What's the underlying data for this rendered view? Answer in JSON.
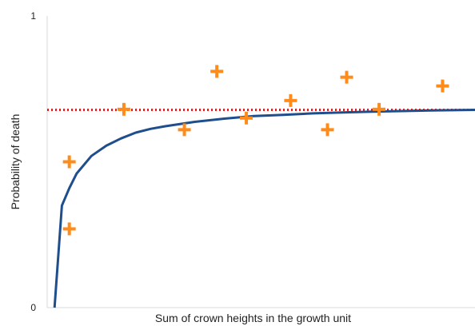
{
  "chart_data": {
    "type": "scatter",
    "title": "",
    "xlabel": "Sum of crown heights in the growth unit",
    "ylabel": "Probability of death",
    "xlim": [
      0,
      29
    ],
    "ylim": [
      0,
      1
    ],
    "yticks": [
      {
        "value": 0,
        "label": "0"
      },
      {
        "value": 1,
        "label": "1"
      }
    ],
    "grid": false,
    "legend": "none",
    "series": [
      {
        "type": "scatter",
        "marker": "plus",
        "color": "#ff8c1a",
        "points": [
          {
            "x": 1.5,
            "y": 0.5
          },
          {
            "x": 1.5,
            "y": 0.27
          },
          {
            "x": 5.2,
            "y": 0.68
          },
          {
            "x": 9.3,
            "y": 0.61
          },
          {
            "x": 11.5,
            "y": 0.81
          },
          {
            "x": 13.5,
            "y": 0.65
          },
          {
            "x": 16.5,
            "y": 0.71
          },
          {
            "x": 19.0,
            "y": 0.61
          },
          {
            "x": 20.3,
            "y": 0.79
          },
          {
            "x": 22.5,
            "y": 0.68
          },
          {
            "x": 26.8,
            "y": 0.76
          }
        ]
      },
      {
        "type": "line",
        "color": "#1f4e8c",
        "points": [
          {
            "x": 0.5,
            "y": 0.0
          },
          {
            "x": 1.0,
            "y": 0.35
          },
          {
            "x": 1.5,
            "y": 0.41
          },
          {
            "x": 2.0,
            "y": 0.46
          },
          {
            "x": 3.0,
            "y": 0.52
          },
          {
            "x": 4.0,
            "y": 0.555
          },
          {
            "x": 5.0,
            "y": 0.58
          },
          {
            "x": 6.0,
            "y": 0.6
          },
          {
            "x": 7.0,
            "y": 0.613
          },
          {
            "x": 8.0,
            "y": 0.622
          },
          {
            "x": 10.0,
            "y": 0.637
          },
          {
            "x": 12.0,
            "y": 0.648
          },
          {
            "x": 14.0,
            "y": 0.657
          },
          {
            "x": 16.0,
            "y": 0.661
          },
          {
            "x": 18.0,
            "y": 0.666
          },
          {
            "x": 20.0,
            "y": 0.669
          },
          {
            "x": 22.0,
            "y": 0.672
          },
          {
            "x": 24.0,
            "y": 0.674
          },
          {
            "x": 26.0,
            "y": 0.676
          },
          {
            "x": 29.0,
            "y": 0.678
          }
        ]
      },
      {
        "type": "reference-line",
        "style": "dotted",
        "color": "#e02020",
        "y": 0.678
      }
    ]
  }
}
